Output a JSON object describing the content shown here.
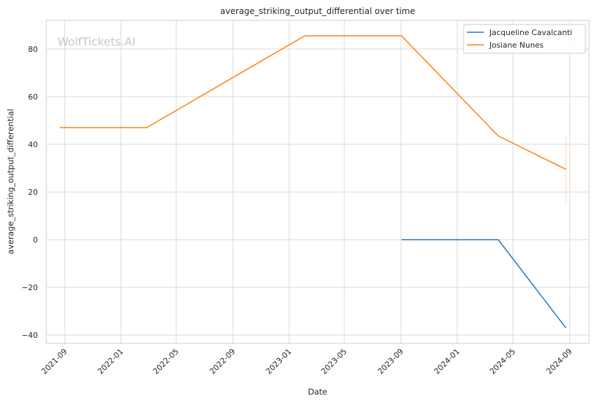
{
  "watermark": "WolfTickets.AI",
  "chart_data": {
    "type": "line",
    "title": "average_striking_output_differential over time",
    "xlabel": "Date",
    "ylabel": "average_striking_output_differential",
    "x_ticks": [
      "2021-09",
      "2022-01",
      "2022-05",
      "2022-09",
      "2023-01",
      "2023-05",
      "2023-09",
      "2024-01",
      "2024-05",
      "2024-09"
    ],
    "y_ticks": [
      80,
      60,
      40,
      20,
      0,
      -20,
      -40
    ],
    "y_tick_labels": [
      "80",
      "60",
      "40",
      "20",
      "0",
      "−20",
      "−40"
    ],
    "xlim": [
      "2021-07-23",
      "2024-10-13"
    ],
    "ylim": [
      -43.5,
      92
    ],
    "grid": true,
    "legend_position": "top-right",
    "series": [
      {
        "name": "Jacqueline Cavalcanti",
        "color": "#1f77b4",
        "points": [
          {
            "x": "2023-09-02",
            "y": 0
          },
          {
            "x": "2024-03-30",
            "y": 0
          },
          {
            "x": "2024-08-24",
            "y": -37
          }
        ]
      },
      {
        "name": "Josiane Nunes",
        "color": "#ff7f0e",
        "points": [
          {
            "x": "2021-08-21",
            "y": 47
          },
          {
            "x": "2022-02-26",
            "y": 47
          },
          {
            "x": "2023-02-04",
            "y": 85.5
          },
          {
            "x": "2023-09-02",
            "y": 85.5
          },
          {
            "x": "2024-03-30",
            "y": 43.5
          },
          {
            "x": "2024-08-24",
            "y": 29.5
          }
        ],
        "error_band": {
          "x": "2024-08-24",
          "low": 15.5,
          "high": 43.5
        }
      }
    ]
  }
}
